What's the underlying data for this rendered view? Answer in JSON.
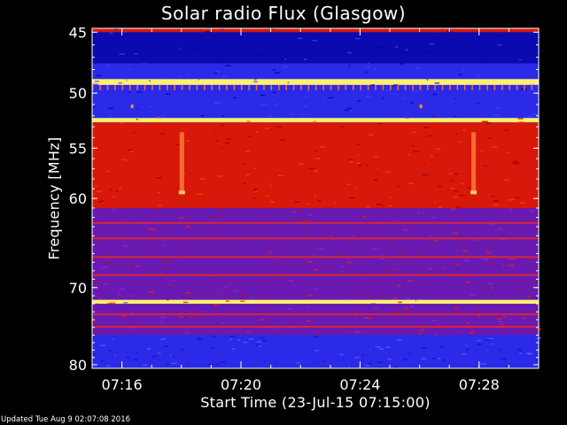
{
  "chart_data": {
    "type": "heatmap",
    "title": "Solar radio Flux (Glasgow)",
    "xlabel": "Start Time (23-Jul-15 07:15:00)",
    "ylabel": "Frequency [MHz]",
    "x_range_minutes": [
      "07:15:00",
      "07:30:00"
    ],
    "y_range_mhz": [
      45,
      80
    ],
    "x_ticks": [
      "07:16",
      "07:20",
      "07:24",
      "07:28"
    ],
    "x_tick_minutes": [
      16,
      20,
      24,
      28
    ],
    "y_ticks": [
      "45",
      "50",
      "55",
      "60",
      "70",
      "80"
    ],
    "y_tick_values": [
      45,
      50,
      55,
      60,
      70,
      80
    ],
    "colormap": [
      "#000090",
      "#2020e0",
      "#5050ff",
      "#8020c0",
      "#c01010",
      "#ff2000",
      "#ffff80"
    ],
    "bands": [
      {
        "from_mhz": 44.7,
        "to_mhz": 45.0,
        "level": "high"
      },
      {
        "from_mhz": 45.0,
        "to_mhz": 47.5,
        "level": "very low"
      },
      {
        "from_mhz": 47.5,
        "to_mhz": 48.8,
        "level": "low"
      },
      {
        "from_mhz": 48.8,
        "to_mhz": 49.3,
        "level": "peak"
      },
      {
        "from_mhz": 49.3,
        "to_mhz": 52.2,
        "level": "low"
      },
      {
        "from_mhz": 52.2,
        "to_mhz": 52.6,
        "level": "peak"
      },
      {
        "from_mhz": 52.6,
        "to_mhz": 57.5,
        "level": "high"
      },
      {
        "from_mhz": 57.5,
        "to_mhz": 61.0,
        "level": "high"
      },
      {
        "from_mhz": 61.0,
        "to_mhz": 71.5,
        "level": "medium"
      },
      {
        "from_mhz": 71.5,
        "to_mhz": 72.0,
        "level": "peak"
      },
      {
        "from_mhz": 72.0,
        "to_mhz": 76.0,
        "level": "medium"
      },
      {
        "from_mhz": 76.0,
        "to_mhz": 80.0,
        "level": "low"
      }
    ],
    "vertical_bursts_minutes": [
      18.0,
      27.8
    ],
    "grid": false,
    "legend": "none"
  },
  "footer": "Updated Tue Aug  9 02:07:08 2016"
}
